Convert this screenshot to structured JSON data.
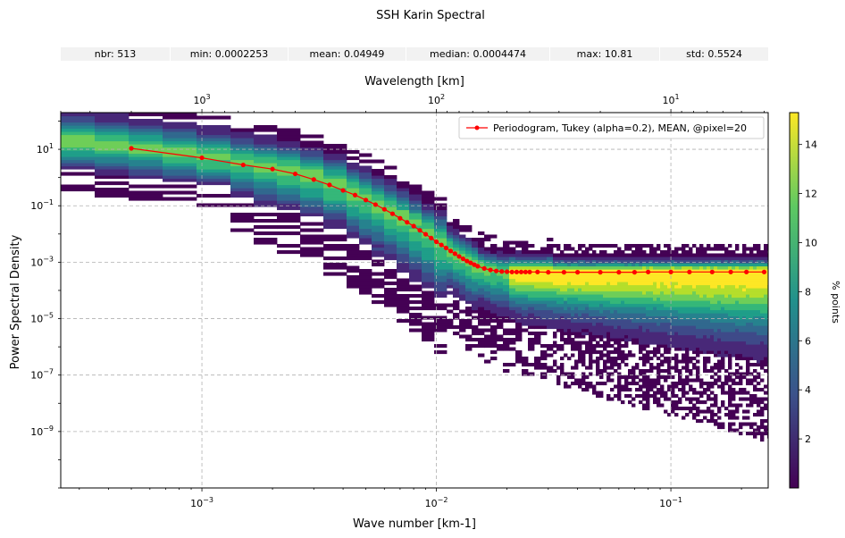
{
  "title": "SSH Karin Spectral",
  "stats": [
    {
      "label": "nbr:",
      "value": "513"
    },
    {
      "label": "min:",
      "value": "0.0002253"
    },
    {
      "label": "mean:",
      "value": "0.04949"
    },
    {
      "label": "median:",
      "value": "0.0004474"
    },
    {
      "label": "max:",
      "value": "10.81"
    },
    {
      "label": "std:",
      "value": "0.5524"
    }
  ],
  "chart_data": {
    "type": "heatmap",
    "xlabel": "Wave number [km-1]",
    "ylabel": "Power Spectral Density",
    "top_xlabel": "Wavelength [km]",
    "colorbar_label": "% points",
    "xscale": "log",
    "yscale": "log",
    "xlim": [
      0.00025,
      0.26
    ],
    "ylim": [
      1e-11,
      200
    ],
    "x_ticks": [
      {
        "value": 0.001,
        "label": "10",
        "exp": "−3"
      },
      {
        "value": 0.01,
        "label": "10",
        "exp": "−2"
      },
      {
        "value": 0.1,
        "label": "10",
        "exp": "−1"
      }
    ],
    "y_ticks": [
      {
        "value": 10,
        "label": "10",
        "exp": "1"
      },
      {
        "value": 0.1,
        "label": "10",
        "exp": "−1"
      },
      {
        "value": 0.001,
        "label": "10",
        "exp": "−3"
      },
      {
        "value": 1e-05,
        "label": "10",
        "exp": "−5"
      },
      {
        "value": 1e-07,
        "label": "10",
        "exp": "−7"
      },
      {
        "value": 1e-09,
        "label": "10",
        "exp": "−9"
      }
    ],
    "top_ticks": [
      {
        "wavelength": 1000,
        "label": "10",
        "exp": "3"
      },
      {
        "wavelength": 100,
        "label": "10",
        "exp": "2"
      },
      {
        "wavelength": 10,
        "label": "10",
        "exp": "1"
      }
    ],
    "colorbar": {
      "min": 0,
      "max": 15.3,
      "ticks": [
        2,
        4,
        6,
        8,
        10,
        12,
        14
      ]
    },
    "grid": true,
    "legend_position": "top-right",
    "series": [
      {
        "name": "Periodogram, Tukey (alpha=0.2), MEAN, @pixel=20",
        "color": "#ff0000",
        "x": [
          0.0005,
          0.001,
          0.0015,
          0.002,
          0.0025,
          0.003,
          0.0035,
          0.004,
          0.0045,
          0.005,
          0.0055,
          0.006,
          0.0065,
          0.007,
          0.0075,
          0.008,
          0.0085,
          0.009,
          0.0095,
          0.01,
          0.0105,
          0.011,
          0.0115,
          0.012,
          0.0125,
          0.013,
          0.0135,
          0.014,
          0.0145,
          0.015,
          0.016,
          0.017,
          0.018,
          0.019,
          0.02,
          0.021,
          0.022,
          0.023,
          0.024,
          0.025,
          0.027,
          0.03,
          0.035,
          0.04,
          0.05,
          0.06,
          0.07,
          0.08,
          0.1,
          0.12,
          0.15,
          0.18,
          0.21,
          0.25
        ],
        "y": [
          10.81,
          5.0,
          2.8,
          2.0,
          1.35,
          0.85,
          0.55,
          0.35,
          0.24,
          0.16,
          0.11,
          0.075,
          0.052,
          0.036,
          0.026,
          0.019,
          0.0135,
          0.0098,
          0.0072,
          0.0053,
          0.0041,
          0.0032,
          0.0025,
          0.002,
          0.0016,
          0.00132,
          0.0011,
          0.00095,
          0.00082,
          0.00072,
          0.0006,
          0.00053,
          0.00049,
          0.00047,
          0.00046,
          0.00045,
          0.00045,
          0.00045,
          0.00045,
          0.00045,
          0.00045,
          0.00044,
          0.00044,
          0.00044,
          0.00044,
          0.00044,
          0.00044,
          0.00045,
          0.00045,
          0.00045,
          0.00045,
          0.00045,
          0.00045,
          0.00045
        ]
      }
    ]
  }
}
